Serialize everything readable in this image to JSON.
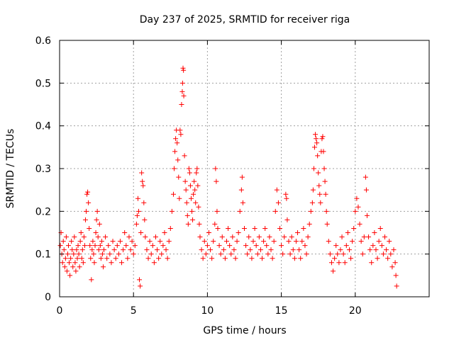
{
  "chart_data": {
    "type": "scatter",
    "title": "Day 237 of 2025, SRMTID for receiver riga",
    "xlabel": "GPS time / hours",
    "ylabel": "SRMTID / TECUs",
    "xlim": [
      0,
      25
    ],
    "ylim": [
      0,
      0.6
    ],
    "xticks": [
      0,
      5,
      10,
      15,
      20
    ],
    "xtick_labels": [
      "0",
      "5",
      "10",
      "15",
      "20"
    ],
    "yticks": [
      0,
      0.1,
      0.2,
      0.3,
      0.4,
      0.5,
      0.6
    ],
    "ytick_labels": [
      "0",
      "0.1",
      "0.2",
      "0.3",
      "0.4",
      "0.5",
      "0.6"
    ],
    "grid": true,
    "marker": "plus",
    "color": "#ff0000",
    "series": [
      {
        "name": "SRMTID",
        "points": [
          [
            0.05,
            0.12
          ],
          [
            0.1,
            0.15
          ],
          [
            0.15,
            0.1
          ],
          [
            0.2,
            0.08
          ],
          [
            0.25,
            0.13
          ],
          [
            0.3,
            0.11
          ],
          [
            0.35,
            0.07
          ],
          [
            0.4,
            0.09
          ],
          [
            0.45,
            0.14
          ],
          [
            0.5,
            0.06
          ],
          [
            0.55,
            0.1
          ],
          [
            0.6,
            0.12
          ],
          [
            0.65,
            0.08
          ],
          [
            0.7,
            0.05
          ],
          [
            0.75,
            0.09
          ],
          [
            0.8,
            0.13
          ],
          [
            0.85,
            0.11
          ],
          [
            0.9,
            0.07
          ],
          [
            0.95,
            0.1
          ],
          [
            1.0,
            0.14
          ],
          [
            1.05,
            0.08
          ],
          [
            1.1,
            0.06
          ],
          [
            1.15,
            0.11
          ],
          [
            1.2,
            0.09
          ],
          [
            1.25,
            0.12
          ],
          [
            1.3,
            0.1
          ],
          [
            1.35,
            0.07
          ],
          [
            1.4,
            0.13
          ],
          [
            1.45,
            0.15
          ],
          [
            1.5,
            0.09
          ],
          [
            1.55,
            0.11
          ],
          [
            1.6,
            0.08
          ],
          [
            1.65,
            0.14
          ],
          [
            1.7,
            0.12
          ],
          [
            1.75,
            0.18
          ],
          [
            1.8,
            0.2
          ],
          [
            1.85,
            0.24
          ],
          [
            1.9,
            0.245
          ],
          [
            1.95,
            0.22
          ],
          [
            2.0,
            0.16
          ],
          [
            2.05,
            0.12
          ],
          [
            2.1,
            0.09
          ],
          [
            2.15,
            0.04
          ],
          [
            2.2,
            0.11
          ],
          [
            2.25,
            0.13
          ],
          [
            2.3,
            0.1
          ],
          [
            2.35,
            0.08
          ],
          [
            2.4,
            0.12
          ],
          [
            2.45,
            0.15
          ],
          [
            2.5,
            0.18
          ],
          [
            2.55,
            0.2
          ],
          [
            2.6,
            0.14
          ],
          [
            2.65,
            0.11
          ],
          [
            2.7,
            0.17
          ],
          [
            2.75,
            0.12
          ],
          [
            2.8,
            0.09
          ],
          [
            2.85,
            0.13
          ],
          [
            2.9,
            0.1
          ],
          [
            2.95,
            0.07
          ],
          [
            3.0,
            0.11
          ],
          [
            3.1,
            0.14
          ],
          [
            3.2,
            0.09
          ],
          [
            3.3,
            0.12
          ],
          [
            3.4,
            0.1
          ],
          [
            3.5,
            0.08
          ],
          [
            3.6,
            0.13
          ],
          [
            3.7,
            0.11
          ],
          [
            3.8,
            0.09
          ],
          [
            3.9,
            0.12
          ],
          [
            4.0,
            0.1
          ],
          [
            4.1,
            0.13
          ],
          [
            4.2,
            0.08
          ],
          [
            4.3,
            0.11
          ],
          [
            4.4,
            0.15
          ],
          [
            4.5,
            0.12
          ],
          [
            4.6,
            0.09
          ],
          [
            4.7,
            0.14
          ],
          [
            4.8,
            0.11
          ],
          [
            4.9,
            0.13
          ],
          [
            5.0,
            0.1
          ],
          [
            5.1,
            0.12
          ],
          [
            5.2,
            0.17
          ],
          [
            5.25,
            0.19
          ],
          [
            5.3,
            0.23
          ],
          [
            5.35,
            0.2
          ],
          [
            5.4,
            0.04
          ],
          [
            5.45,
            0.025
          ],
          [
            5.5,
            0.15
          ],
          [
            5.55,
            0.29
          ],
          [
            5.6,
            0.27
          ],
          [
            5.65,
            0.26
          ],
          [
            5.7,
            0.22
          ],
          [
            5.75,
            0.18
          ],
          [
            5.8,
            0.14
          ],
          [
            5.9,
            0.11
          ],
          [
            6.0,
            0.09
          ],
          [
            6.1,
            0.13
          ],
          [
            6.2,
            0.1
          ],
          [
            6.3,
            0.12
          ],
          [
            6.4,
            0.08
          ],
          [
            6.5,
            0.14
          ],
          [
            6.6,
            0.11
          ],
          [
            6.7,
            0.09
          ],
          [
            6.8,
            0.13
          ],
          [
            6.9,
            0.1
          ],
          [
            7.0,
            0.12
          ],
          [
            7.1,
            0.15
          ],
          [
            7.2,
            0.11
          ],
          [
            7.3,
            0.09
          ],
          [
            7.4,
            0.13
          ],
          [
            7.5,
            0.16
          ],
          [
            7.6,
            0.2
          ],
          [
            7.7,
            0.24
          ],
          [
            7.75,
            0.3
          ],
          [
            7.8,
            0.34
          ],
          [
            7.85,
            0.37
          ],
          [
            7.9,
            0.39
          ],
          [
            7.95,
            0.36
          ],
          [
            8.0,
            0.32
          ],
          [
            8.05,
            0.28
          ],
          [
            8.1,
            0.23
          ],
          [
            8.15,
            0.39
          ],
          [
            8.2,
            0.38
          ],
          [
            8.25,
            0.45
          ],
          [
            8.3,
            0.48
          ],
          [
            8.32,
            0.5
          ],
          [
            8.35,
            0.535
          ],
          [
            8.38,
            0.53
          ],
          [
            8.4,
            0.47
          ],
          [
            8.45,
            0.33
          ],
          [
            8.5,
            0.27
          ],
          [
            8.55,
            0.25
          ],
          [
            8.6,
            0.22
          ],
          [
            8.65,
            0.19
          ],
          [
            8.7,
            0.17
          ],
          [
            8.75,
            0.3
          ],
          [
            8.8,
            0.29
          ],
          [
            8.85,
            0.26
          ],
          [
            8.9,
            0.23
          ],
          [
            8.95,
            0.2
          ],
          [
            9.0,
            0.18
          ],
          [
            9.05,
            0.24
          ],
          [
            9.1,
            0.27
          ],
          [
            9.15,
            0.25
          ],
          [
            9.2,
            0.22
          ],
          [
            9.25,
            0.29
          ],
          [
            9.3,
            0.3
          ],
          [
            9.35,
            0.26
          ],
          [
            9.4,
            0.21
          ],
          [
            9.45,
            0.17
          ],
          [
            9.5,
            0.14
          ],
          [
            9.6,
            0.11
          ],
          [
            9.7,
            0.09
          ],
          [
            9.8,
            0.13
          ],
          [
            9.9,
            0.1
          ],
          [
            10.0,
            0.12
          ],
          [
            10.1,
            0.15
          ],
          [
            10.2,
            0.11
          ],
          [
            10.3,
            0.09
          ],
          [
            10.4,
            0.13
          ],
          [
            10.5,
            0.17
          ],
          [
            10.55,
            0.3
          ],
          [
            10.6,
            0.27
          ],
          [
            10.65,
            0.2
          ],
          [
            10.7,
            0.16
          ],
          [
            10.8,
            0.12
          ],
          [
            10.9,
            0.1
          ],
          [
            11.0,
            0.14
          ],
          [
            11.1,
            0.11
          ],
          [
            11.2,
            0.09
          ],
          [
            11.3,
            0.13
          ],
          [
            11.4,
            0.16
          ],
          [
            11.5,
            0.12
          ],
          [
            11.6,
            0.1
          ],
          [
            11.7,
            0.14
          ],
          [
            11.8,
            0.11
          ],
          [
            11.9,
            0.09
          ],
          [
            12.0,
            0.13
          ],
          [
            12.1,
            0.15
          ],
          [
            12.2,
            0.2
          ],
          [
            12.3,
            0.25
          ],
          [
            12.35,
            0.28
          ],
          [
            12.4,
            0.22
          ],
          [
            12.5,
            0.16
          ],
          [
            12.6,
            0.12
          ],
          [
            12.7,
            0.1
          ],
          [
            12.8,
            0.14
          ],
          [
            12.9,
            0.11
          ],
          [
            13.0,
            0.09
          ],
          [
            13.1,
            0.13
          ],
          [
            13.2,
            0.16
          ],
          [
            13.3,
            0.12
          ],
          [
            13.4,
            0.1
          ],
          [
            13.5,
            0.14
          ],
          [
            13.6,
            0.11
          ],
          [
            13.7,
            0.09
          ],
          [
            13.8,
            0.13
          ],
          [
            13.9,
            0.16
          ],
          [
            14.0,
            0.12
          ],
          [
            14.1,
            0.1
          ],
          [
            14.2,
            0.14
          ],
          [
            14.3,
            0.11
          ],
          [
            14.4,
            0.09
          ],
          [
            14.5,
            0.13
          ],
          [
            14.6,
            0.2
          ],
          [
            14.7,
            0.25
          ],
          [
            14.8,
            0.22
          ],
          [
            14.9,
            0.16
          ],
          [
            15.0,
            0.12
          ],
          [
            15.1,
            0.1
          ],
          [
            15.2,
            0.14
          ],
          [
            15.3,
            0.24
          ],
          [
            15.35,
            0.23
          ],
          [
            15.4,
            0.18
          ],
          [
            15.5,
            0.13
          ],
          [
            15.6,
            0.1
          ],
          [
            15.7,
            0.14
          ],
          [
            15.8,
            0.11
          ],
          [
            15.9,
            0.09
          ],
          [
            16.0,
            0.13
          ],
          [
            16.1,
            0.15
          ],
          [
            16.2,
            0.11
          ],
          [
            16.3,
            0.09
          ],
          [
            16.4,
            0.13
          ],
          [
            16.5,
            0.16
          ],
          [
            16.6,
            0.12
          ],
          [
            16.7,
            0.1
          ],
          [
            16.8,
            0.14
          ],
          [
            16.9,
            0.17
          ],
          [
            17.0,
            0.2
          ],
          [
            17.1,
            0.22
          ],
          [
            17.15,
            0.25
          ],
          [
            17.2,
            0.3
          ],
          [
            17.25,
            0.35
          ],
          [
            17.3,
            0.38
          ],
          [
            17.35,
            0.37
          ],
          [
            17.4,
            0.36
          ],
          [
            17.45,
            0.33
          ],
          [
            17.5,
            0.29
          ],
          [
            17.55,
            0.26
          ],
          [
            17.6,
            0.24
          ],
          [
            17.65,
            0.22
          ],
          [
            17.7,
            0.34
          ],
          [
            17.75,
            0.37
          ],
          [
            17.8,
            0.375
          ],
          [
            17.85,
            0.34
          ],
          [
            17.9,
            0.3
          ],
          [
            17.95,
            0.27
          ],
          [
            18.0,
            0.24
          ],
          [
            18.05,
            0.2
          ],
          [
            18.1,
            0.17
          ],
          [
            18.2,
            0.13
          ],
          [
            18.3,
            0.1
          ],
          [
            18.4,
            0.08
          ],
          [
            18.5,
            0.06
          ],
          [
            18.6,
            0.09
          ],
          [
            18.7,
            0.12
          ],
          [
            18.8,
            0.1
          ],
          [
            18.9,
            0.08
          ],
          [
            19.0,
            0.11
          ],
          [
            19.1,
            0.14
          ],
          [
            19.2,
            0.1
          ],
          [
            19.3,
            0.08
          ],
          [
            19.4,
            0.12
          ],
          [
            19.5,
            0.15
          ],
          [
            19.6,
            0.11
          ],
          [
            19.7,
            0.09
          ],
          [
            19.8,
            0.13
          ],
          [
            19.9,
            0.16
          ],
          [
            20.0,
            0.2
          ],
          [
            20.1,
            0.23
          ],
          [
            20.2,
            0.21
          ],
          [
            20.3,
            0.17
          ],
          [
            20.4,
            0.13
          ],
          [
            20.5,
            0.1
          ],
          [
            20.6,
            0.14
          ],
          [
            20.7,
            0.28
          ],
          [
            20.75,
            0.25
          ],
          [
            20.8,
            0.19
          ],
          [
            20.9,
            0.14
          ],
          [
            21.0,
            0.11
          ],
          [
            21.1,
            0.08
          ],
          [
            21.2,
            0.12
          ],
          [
            21.3,
            0.15
          ],
          [
            21.4,
            0.11
          ],
          [
            21.5,
            0.09
          ],
          [
            21.6,
            0.13
          ],
          [
            21.7,
            0.16
          ],
          [
            21.8,
            0.12
          ],
          [
            21.9,
            0.1
          ],
          [
            22.0,
            0.14
          ],
          [
            22.1,
            0.11
          ],
          [
            22.2,
            0.09
          ],
          [
            22.3,
            0.13
          ],
          [
            22.4,
            0.1
          ],
          [
            22.5,
            0.07
          ],
          [
            22.6,
            0.11
          ],
          [
            22.7,
            0.08
          ],
          [
            22.75,
            0.05
          ],
          [
            22.8,
            0.025
          ]
        ]
      }
    ]
  }
}
